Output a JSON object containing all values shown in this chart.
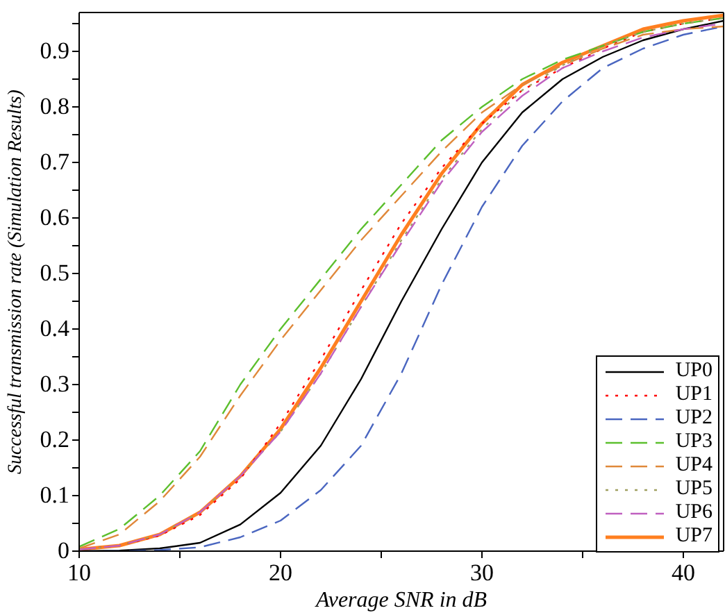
{
  "chart_data": {
    "type": "line",
    "xlabel": "Average SNR in dB",
    "ylabel": "Successful transmission rate (Simulation Results)",
    "x": [
      10,
      12,
      14,
      16,
      18,
      20,
      22,
      24,
      26,
      28,
      30,
      32,
      34,
      36,
      38,
      40,
      42
    ],
    "xlim": [
      10,
      42
    ],
    "xticks": [
      10,
      {
        "value": 15,
        "label": null
      },
      20,
      {
        "value": 25,
        "label": null
      },
      30,
      {
        "value": 35,
        "label": null
      },
      40
    ],
    "ylim": [
      0,
      0.97
    ],
    "yticks": [
      0,
      {
        "value": 0.05,
        "label": null
      },
      0.1,
      {
        "value": 0.15,
        "label": null
      },
      0.2,
      {
        "value": 0.25,
        "label": null
      },
      0.3,
      {
        "value": 0.35,
        "label": null
      },
      0.4,
      {
        "value": 0.45,
        "label": null
      },
      0.5,
      {
        "value": 0.55,
        "label": null
      },
      0.6,
      {
        "value": 0.65,
        "label": null
      },
      0.7,
      {
        "value": 0.75,
        "label": null
      },
      0.8,
      {
        "value": 0.85,
        "label": null
      },
      0.9,
      {
        "value": 0.95,
        "label": null
      }
    ],
    "grid": false,
    "legend": "bottom right",
    "marker": "none",
    "series": [
      {
        "name": "UP0",
        "color": "#000000",
        "line_style": "solid",
        "values": [
          0,
          0.001,
          0.005,
          0.015,
          0.048,
          0.105,
          0.19,
          0.31,
          0.45,
          0.58,
          0.7,
          0.79,
          0.85,
          0.89,
          0.92,
          0.94,
          0.955
        ]
      },
      {
        "name": "UP1",
        "color": "#ff0000",
        "line_style": "dotted",
        "values": [
          0.003,
          0.01,
          0.028,
          0.065,
          0.13,
          0.23,
          0.345,
          0.47,
          0.59,
          0.69,
          0.77,
          0.83,
          0.87,
          0.905,
          0.935,
          0.95,
          0.96
        ]
      },
      {
        "name": "UP2",
        "color": "#4a66c0",
        "line_style": "dashed",
        "values": [
          0,
          0,
          0.002,
          0.007,
          0.025,
          0.055,
          0.11,
          0.19,
          0.32,
          0.48,
          0.62,
          0.73,
          0.81,
          0.87,
          0.905,
          0.93,
          0.945
        ]
      },
      {
        "name": "UP3",
        "color": "#5cbf2e",
        "line_style": "dashed",
        "values": [
          0.008,
          0.04,
          0.1,
          0.18,
          0.3,
          0.4,
          0.49,
          0.58,
          0.66,
          0.74,
          0.8,
          0.85,
          0.885,
          0.91,
          0.935,
          0.95,
          0.96
        ]
      },
      {
        "name": "UP4",
        "color": "#e0883a",
        "line_style": "dashed",
        "values": [
          0.005,
          0.03,
          0.09,
          0.17,
          0.28,
          0.38,
          0.47,
          0.56,
          0.64,
          0.72,
          0.79,
          0.84,
          0.875,
          0.905,
          0.93,
          0.94,
          0.945
        ]
      },
      {
        "name": "UP5",
        "color": "#a0a060",
        "line_style": "dotted",
        "values": [
          0.003,
          0.01,
          0.03,
          0.07,
          0.135,
          0.215,
          0.32,
          0.44,
          0.56,
          0.67,
          0.76,
          0.83,
          0.875,
          0.91,
          0.935,
          0.95,
          0.96
        ]
      },
      {
        "name": "UP6",
        "color": "#c060c0",
        "line_style": "dashed",
        "values": [
          0.003,
          0.01,
          0.03,
          0.07,
          0.135,
          0.215,
          0.32,
          0.44,
          0.555,
          0.665,
          0.755,
          0.82,
          0.87,
          0.9,
          0.925,
          0.94,
          0.95
        ]
      },
      {
        "name": "UP7",
        "color": "#ff7f20",
        "line_style": "solid",
        "values": [
          0.003,
          0.01,
          0.03,
          0.07,
          0.135,
          0.22,
          0.33,
          0.45,
          0.57,
          0.68,
          0.77,
          0.84,
          0.88,
          0.91,
          0.94,
          0.955,
          0.965
        ]
      }
    ]
  }
}
